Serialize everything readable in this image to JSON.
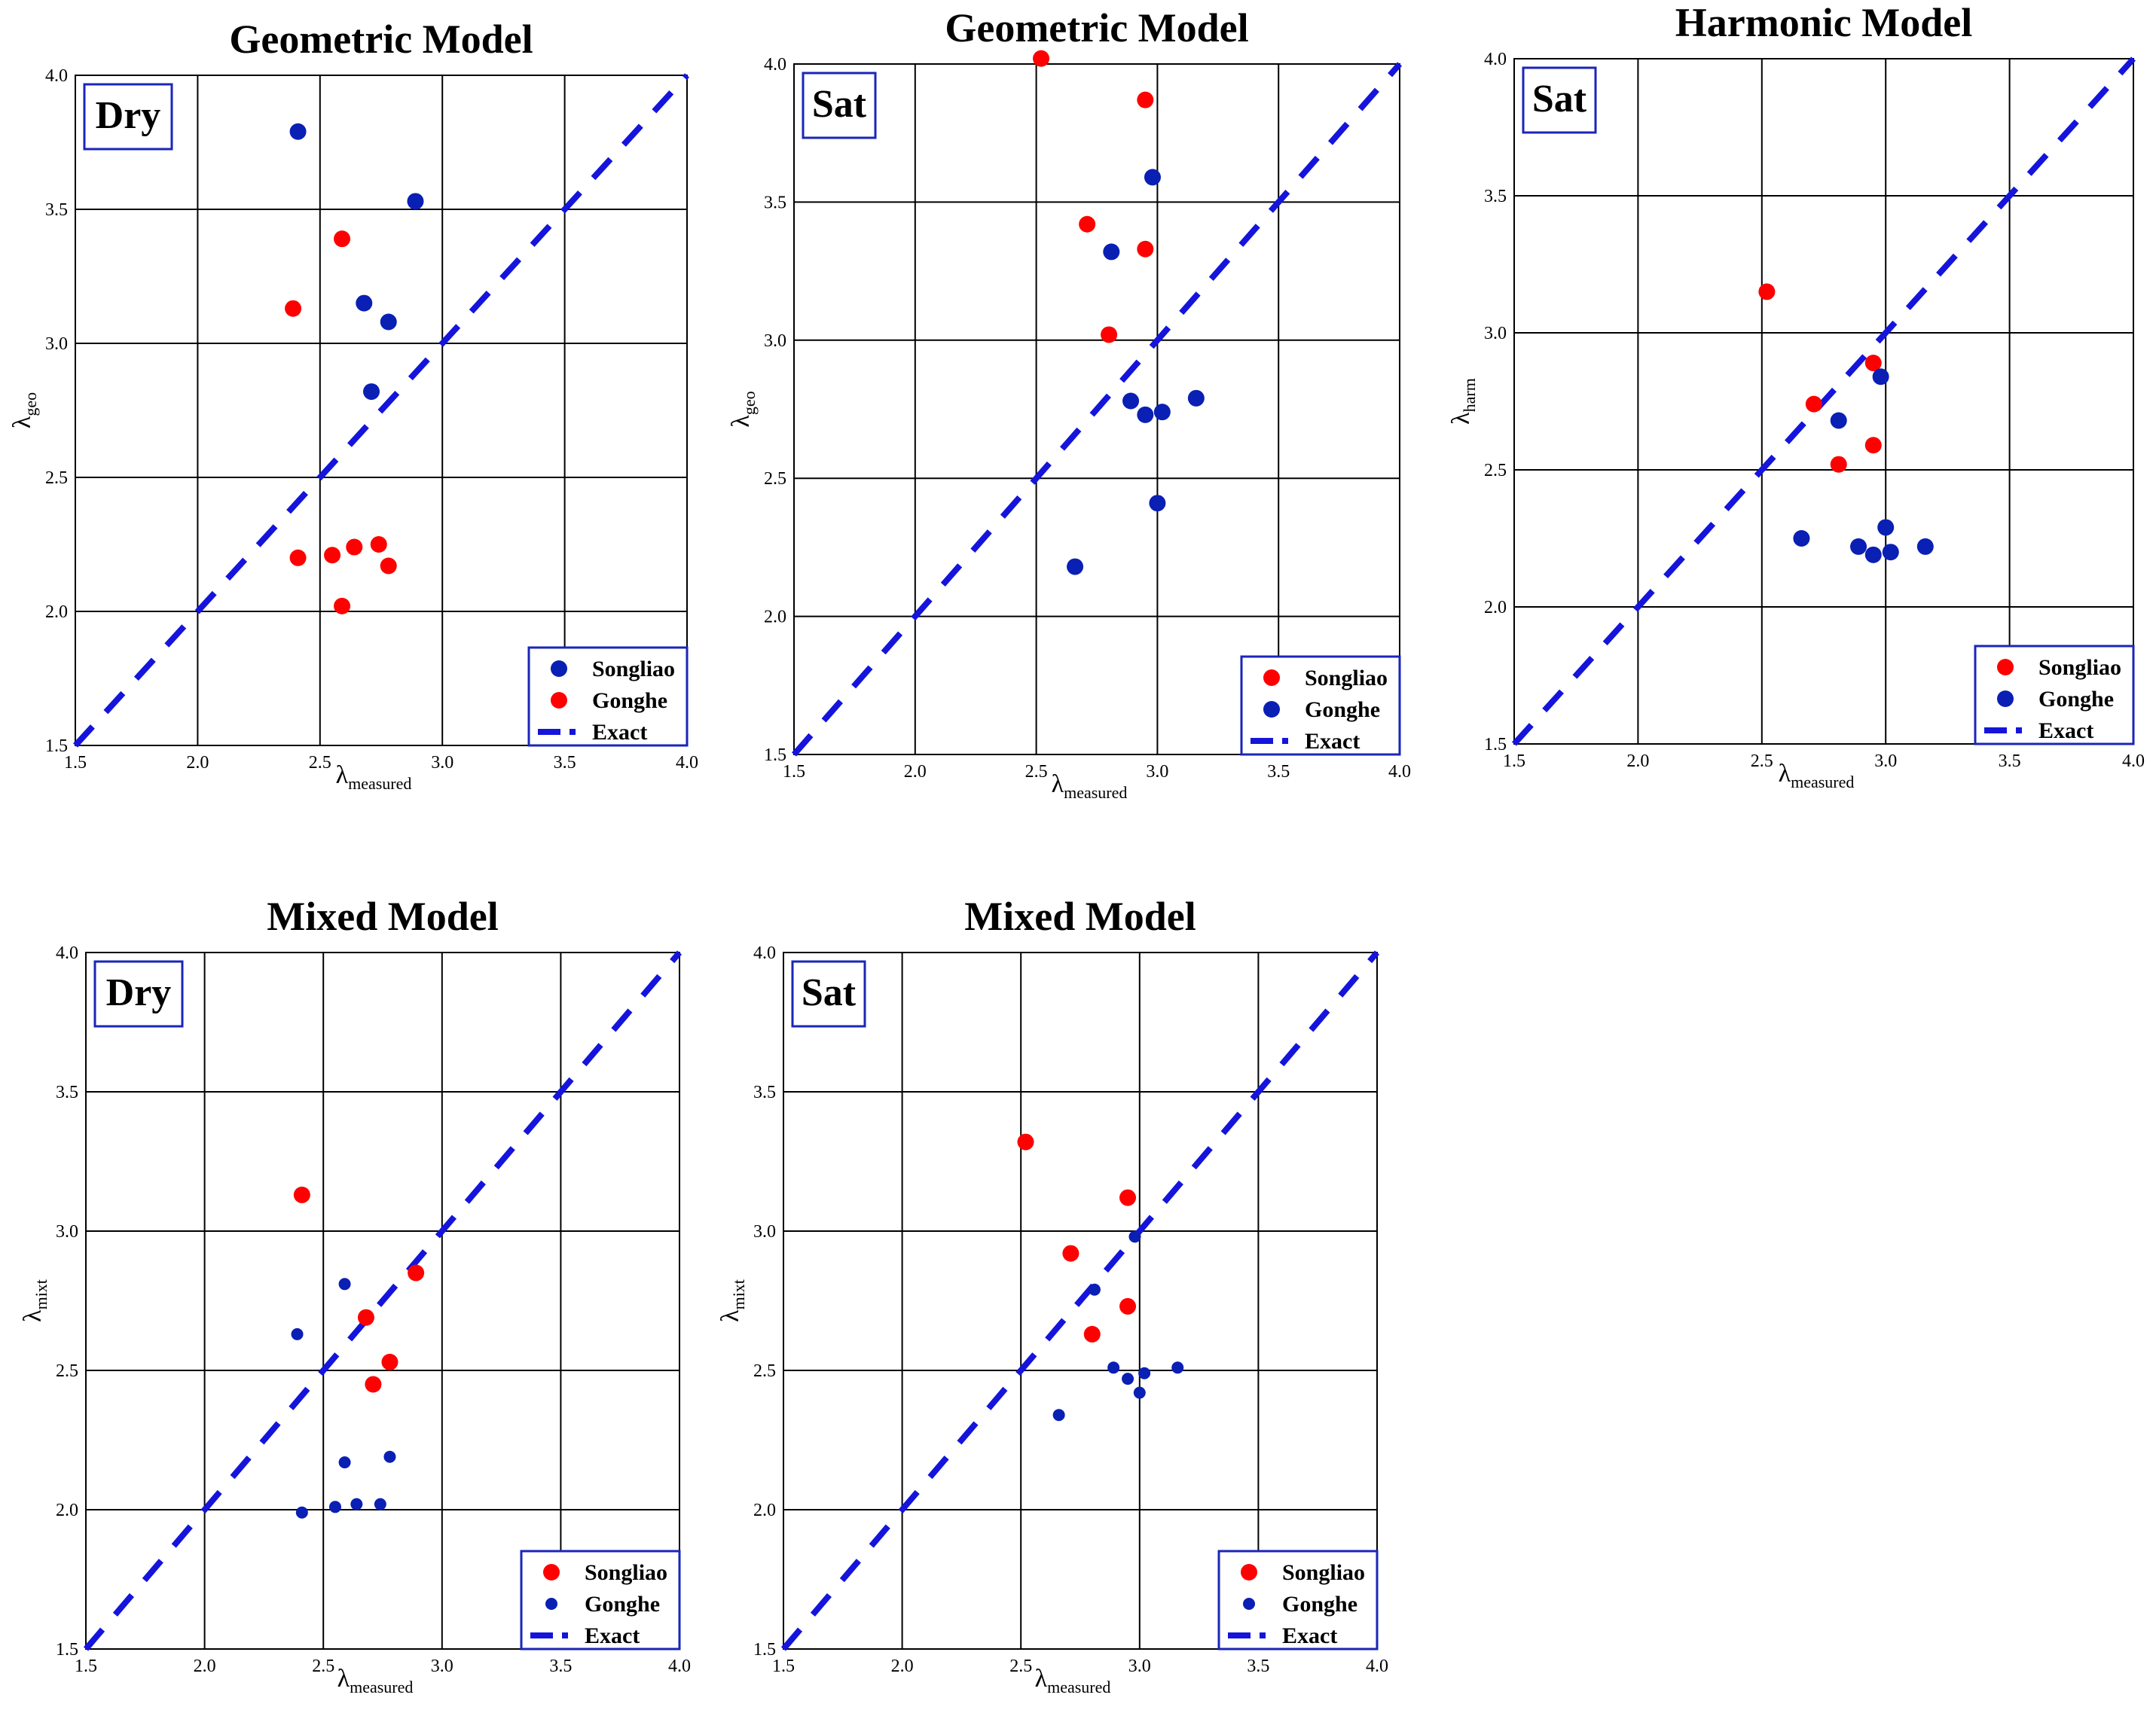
{
  "colors": {
    "songliao_red": "#ff0000",
    "gonghe_blue": "#0a1fb4",
    "exact_line": "#1414dc",
    "frame": "#000000",
    "label_box": "#1a26b8"
  },
  "chart_data": [
    {
      "type": "scatter",
      "title": "Geometric Model",
      "condition": "Dry",
      "xlabel": {
        "symbol": "λ",
        "sub": "measured"
      },
      "ylabel": {
        "symbol": "λ",
        "sub": "geo"
      },
      "xlim": [
        1.5,
        4.0
      ],
      "ylim": [
        1.5,
        4.0
      ],
      "ticks": [
        "1.5",
        "2.0",
        "2.5",
        "3.0",
        "3.5",
        "4.0"
      ],
      "grid": true,
      "legend_position": "bottom-right",
      "legend": [
        "Songliao",
        "Gonghe",
        "Exact"
      ],
      "series": [
        {
          "name": "Songliao",
          "color": "#0a1fb4",
          "marker": "large",
          "points": [
            [
              2.41,
              3.79
            ],
            [
              2.89,
              3.53
            ],
            [
              2.68,
              3.15
            ],
            [
              2.78,
              3.08
            ],
            [
              2.71,
              2.82
            ]
          ]
        },
        {
          "name": "Gonghe",
          "color": "#ff0000",
          "marker": "large",
          "points": [
            [
              2.39,
              3.13
            ],
            [
              2.59,
              3.39
            ],
            [
              2.41,
              2.2
            ],
            [
              2.55,
              2.21
            ],
            [
              2.64,
              2.24
            ],
            [
              2.74,
              2.25
            ],
            [
              2.78,
              2.17
            ],
            [
              2.59,
              2.02
            ]
          ]
        }
      ]
    },
    {
      "type": "scatter",
      "title": "Geometric Model",
      "condition": "Sat",
      "xlabel": {
        "symbol": "λ",
        "sub": "measured"
      },
      "ylabel": {
        "symbol": "λ",
        "sub": "geo"
      },
      "xlim": [
        1.5,
        4.0
      ],
      "ylim": [
        1.5,
        4.0
      ],
      "ticks": [
        "1.5",
        "2.0",
        "2.5",
        "3.0",
        "3.5",
        "4.0"
      ],
      "grid": true,
      "legend_position": "bottom-right",
      "legend": [
        "Songliao",
        "Gonghe",
        "Exact"
      ],
      "series": [
        {
          "name": "Songliao",
          "color": "#ff0000",
          "marker": "large",
          "points": [
            [
              2.52,
              4.02
            ],
            [
              2.95,
              3.87
            ],
            [
              2.71,
              3.42
            ],
            [
              2.95,
              3.33
            ],
            [
              2.8,
              3.02
            ]
          ]
        },
        {
          "name": "Gonghe",
          "color": "#0a1fb4",
          "marker": "large",
          "points": [
            [
              2.98,
              3.59
            ],
            [
              2.81,
              3.32
            ],
            [
              2.89,
              2.78
            ],
            [
              2.95,
              2.73
            ],
            [
              3.02,
              2.74
            ],
            [
              3.16,
              2.79
            ],
            [
              3.0,
              2.41
            ],
            [
              2.66,
              2.18
            ]
          ]
        }
      ]
    },
    {
      "type": "scatter",
      "title": "Harmonic Model",
      "condition": "Sat",
      "xlabel": {
        "symbol": "λ",
        "sub": "measured"
      },
      "ylabel": {
        "symbol": "λ",
        "sub": "harm"
      },
      "xlim": [
        1.5,
        4.0
      ],
      "ylim": [
        1.5,
        4.0
      ],
      "ticks": [
        "1.5",
        "2.0",
        "2.5",
        "3.0",
        "3.5",
        "4.0"
      ],
      "grid": true,
      "legend_position": "bottom-right",
      "legend": [
        "Songliao",
        "Gonghe",
        "Exact"
      ],
      "series": [
        {
          "name": "Songliao",
          "color": "#ff0000",
          "marker": "large",
          "points": [
            [
              2.52,
              3.15
            ],
            [
              2.71,
              2.74
            ],
            [
              2.95,
              2.89
            ],
            [
              2.95,
              2.59
            ],
            [
              2.81,
              2.52
            ]
          ]
        },
        {
          "name": "Gonghe",
          "color": "#0a1fb4",
          "marker": "large",
          "points": [
            [
              2.98,
              2.84
            ],
            [
              2.81,
              2.68
            ],
            [
              2.66,
              2.25
            ],
            [
              2.89,
              2.22
            ],
            [
              2.95,
              2.19
            ],
            [
              3.0,
              2.29
            ],
            [
              3.02,
              2.2
            ],
            [
              3.16,
              2.22
            ]
          ]
        }
      ]
    },
    {
      "type": "scatter",
      "title": "Mixed Model",
      "condition": "Dry",
      "xlabel": {
        "symbol": "λ",
        "sub": "measured"
      },
      "ylabel": {
        "symbol": "λ",
        "sub": "mixt"
      },
      "xlim": [
        1.5,
        4.0
      ],
      "ylim": [
        1.5,
        4.0
      ],
      "ticks": [
        "1.5",
        "2.0",
        "2.5",
        "3.0",
        "3.5",
        "4.0"
      ],
      "grid": true,
      "legend_position": "bottom-right",
      "legend": [
        "Songliao",
        "Gonghe",
        "Exact"
      ],
      "series": [
        {
          "name": "Songliao",
          "color": "#ff0000",
          "marker": "large",
          "points": [
            [
              2.41,
              3.13
            ],
            [
              2.89,
              2.85
            ],
            [
              2.68,
              2.69
            ],
            [
              2.78,
              2.53
            ],
            [
              2.71,
              2.45
            ]
          ]
        },
        {
          "name": "Gonghe",
          "color": "#0a1fb4",
          "marker": "small",
          "points": [
            [
              2.39,
              2.63
            ],
            [
              2.59,
              2.81
            ],
            [
              2.59,
              2.17
            ],
            [
              2.78,
              2.19
            ],
            [
              2.41,
              1.99
            ],
            [
              2.55,
              2.01
            ],
            [
              2.64,
              2.02
            ],
            [
              2.74,
              2.02
            ]
          ]
        }
      ]
    },
    {
      "type": "scatter",
      "title": "Mixed Model",
      "condition": "Sat",
      "xlabel": {
        "symbol": "λ",
        "sub": "measured"
      },
      "ylabel": {
        "symbol": "λ",
        "sub": "mixt"
      },
      "xlim": [
        1.5,
        4.0
      ],
      "ylim": [
        1.5,
        4.0
      ],
      "ticks": [
        "1.5",
        "2.0",
        "2.5",
        "3.0",
        "3.5",
        "4.0"
      ],
      "grid": true,
      "legend_position": "bottom-right",
      "legend": [
        "Songliao",
        "Gonghe",
        "Exact"
      ],
      "series": [
        {
          "name": "Songliao",
          "color": "#ff0000",
          "marker": "large",
          "points": [
            [
              2.52,
              3.32
            ],
            [
              2.95,
              3.12
            ],
            [
              2.71,
              2.92
            ],
            [
              2.95,
              2.73
            ],
            [
              2.8,
              2.63
            ]
          ]
        },
        {
          "name": "Gonghe",
          "color": "#0a1fb4",
          "marker": "small",
          "points": [
            [
              2.98,
              2.98
            ],
            [
              2.81,
              2.79
            ],
            [
              2.89,
              2.51
            ],
            [
              2.95,
              2.47
            ],
            [
              3.02,
              2.49
            ],
            [
              3.16,
              2.51
            ],
            [
              3.0,
              2.42
            ],
            [
              2.66,
              2.34
            ]
          ]
        }
      ]
    }
  ]
}
